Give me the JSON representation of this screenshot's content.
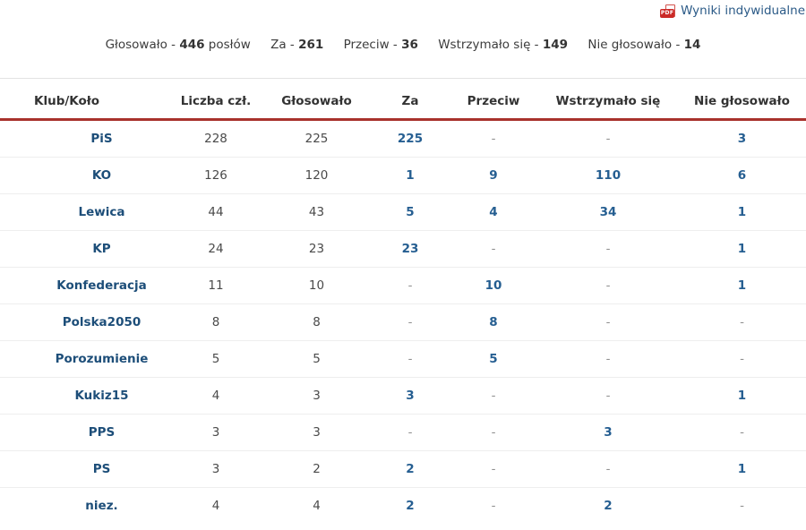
{
  "header": {
    "pdf_link_label": "Wyniki indywidualne",
    "pdf_icon_label": "PDF"
  },
  "summary": {
    "items": [
      {
        "label": "Głosowało -",
        "value": "446",
        "suffix": "posłów"
      },
      {
        "label": "Za -",
        "value": "261",
        "suffix": ""
      },
      {
        "label": "Przeciw -",
        "value": "36",
        "suffix": ""
      },
      {
        "label": "Wstrzymało się -",
        "value": "149",
        "suffix": ""
      },
      {
        "label": "Nie głosowało -",
        "value": "14",
        "suffix": ""
      }
    ]
  },
  "table": {
    "columns": [
      "Klub/Koło",
      "Liczba czł.",
      "Głosowało",
      "Za",
      "Przeciw",
      "Wstrzymało się",
      "Nie głosowało"
    ],
    "rows": [
      [
        "PiS",
        "228",
        "225",
        "225",
        "-",
        "-",
        "3"
      ],
      [
        "KO",
        "126",
        "120",
        "1",
        "9",
        "110",
        "6"
      ],
      [
        "Lewica",
        "44",
        "43",
        "5",
        "4",
        "34",
        "1"
      ],
      [
        "KP",
        "24",
        "23",
        "23",
        "-",
        "-",
        "1"
      ],
      [
        "Konfederacja",
        "11",
        "10",
        "-",
        "10",
        "-",
        "1"
      ],
      [
        "Polska2050",
        "8",
        "8",
        "-",
        "8",
        "-",
        "-"
      ],
      [
        "Porozumienie",
        "5",
        "5",
        "-",
        "5",
        "-",
        "-"
      ],
      [
        "Kukiz15",
        "4",
        "3",
        "3",
        "-",
        "-",
        "1"
      ],
      [
        "PPS",
        "3",
        "3",
        "-",
        "-",
        "3",
        "-"
      ],
      [
        "PS",
        "3",
        "2",
        "2",
        "-",
        "-",
        "1"
      ],
      [
        "niez.",
        "4",
        "4",
        "2",
        "-",
        "2",
        "-"
      ]
    ]
  },
  "colors": {
    "accent_red": "#a8322c",
    "link_blue": "#2b5a87",
    "value_blue": "#255e91",
    "club_blue": "#1d4e79",
    "text_dark": "#3c3c3c",
    "muted": "#909090"
  }
}
